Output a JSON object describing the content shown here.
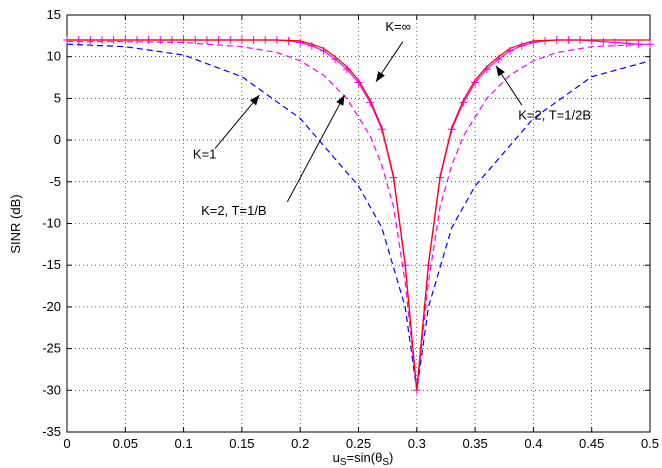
{
  "chart_data": {
    "type": "line",
    "title": "",
    "xlabel_main": "u",
    "xlabel_sub": "S",
    "xlabel_mid": "=sin(θ",
    "xlabel_sub2": "S",
    "xlabel_end": ")",
    "ylabel": "SINR (dB)",
    "xlim": [
      0,
      0.5
    ],
    "ylim": [
      -35,
      15
    ],
    "grid": true,
    "xticks": [
      "0",
      "0.05",
      "0.1",
      "0.15",
      "0.2",
      "0.25",
      "0.3",
      "0.35",
      "0.4",
      "0.45",
      "0.5"
    ],
    "yticks": [
      "15",
      "10",
      "5",
      "0",
      "-5",
      "-10",
      "-15",
      "-20",
      "-25",
      "-30",
      "-35"
    ],
    "series": [
      {
        "label": "K=1",
        "color": "#0000ff",
        "style": "dashed",
        "x": [
          0,
          0.05,
          0.1,
          0.15,
          0.2,
          0.25,
          0.27,
          0.29,
          0.3,
          0.31,
          0.33,
          0.35,
          0.4,
          0.45,
          0.5
        ],
        "y": [
          11.5,
          11.2,
          10.2,
          7.6,
          2.6,
          -5.5,
          -10.5,
          -20,
          -30,
          -20,
          -10.5,
          -5.5,
          2.6,
          7.6,
          9.5
        ]
      },
      {
        "label": "K=2, T=1/B",
        "color": "#ff00ff",
        "style": "dashed",
        "x": [
          0,
          0.05,
          0.1,
          0.15,
          0.18,
          0.2,
          0.22,
          0.24,
          0.26,
          0.27,
          0.28,
          0.29,
          0.3,
          0.31,
          0.32,
          0.33,
          0.34,
          0.36,
          0.38,
          0.4,
          0.42,
          0.45,
          0.5
        ],
        "y": [
          11.8,
          11.8,
          11.7,
          11.2,
          10.5,
          9.5,
          7.8,
          5,
          0.5,
          -3,
          -8,
          -17,
          -30,
          -17,
          -8,
          -3,
          0.5,
          5,
          7.8,
          9.5,
          10.5,
          11.2,
          11.5
        ]
      },
      {
        "label": "K=2, T=1/2B",
        "color": "#ff00ff",
        "style": "solid",
        "markers": "plus",
        "x": [
          0,
          0.01,
          0.02,
          0.03,
          0.04,
          0.05,
          0.06,
          0.07,
          0.08,
          0.09,
          0.1,
          0.11,
          0.12,
          0.13,
          0.14,
          0.15,
          0.16,
          0.17,
          0.18,
          0.19,
          0.2,
          0.21,
          0.22,
          0.23,
          0.24,
          0.25,
          0.26,
          0.27,
          0.28,
          0.29,
          0.3,
          0.31,
          0.32,
          0.33,
          0.34,
          0.35,
          0.36,
          0.37,
          0.38,
          0.39,
          0.4,
          0.41,
          0.42,
          0.43,
          0.44,
          0.45,
          0.46,
          0.47,
          0.48,
          0.49,
          0.5
        ],
        "y": [
          12,
          12,
          12,
          12,
          12,
          12,
          12,
          12,
          12,
          12,
          12,
          12,
          12,
          12,
          12,
          12,
          12,
          12,
          12,
          11.9,
          11.7,
          11.3,
          10.7,
          9.7,
          8.5,
          6.9,
          4.5,
          1.3,
          -4.5,
          -15,
          -30,
          -15,
          -4.5,
          1.3,
          4.5,
          6.9,
          8.5,
          9.7,
          10.7,
          11.3,
          11.7,
          11.9,
          12,
          12,
          12,
          11.9,
          11.8,
          11.7,
          11.6,
          11.5,
          11.5
        ]
      },
      {
        "label": "K=∞",
        "color": "#ff0000",
        "style": "solid",
        "x": [
          0,
          0.05,
          0.1,
          0.15,
          0.18,
          0.2,
          0.21,
          0.22,
          0.23,
          0.24,
          0.25,
          0.26,
          0.27,
          0.28,
          0.29,
          0.3,
          0.31,
          0.32,
          0.33,
          0.34,
          0.35,
          0.36,
          0.37,
          0.38,
          0.39,
          0.4,
          0.42,
          0.45,
          0.5
        ],
        "y": [
          12,
          12,
          12,
          12,
          12,
          11.9,
          11.5,
          11,
          10,
          8.8,
          7.2,
          4.8,
          1.5,
          -4.3,
          -14.8,
          -30,
          -14.8,
          -4.3,
          1.5,
          4.8,
          7.2,
          8.8,
          10,
          11,
          11.5,
          11.9,
          12,
          12,
          12
        ]
      }
    ],
    "annotations": [
      {
        "text": "K=∞",
        "text_x": 0.273,
        "text_y": 13.1,
        "arrow_from": [
          0.288,
          11.8
        ],
        "arrow_to": [
          0.265,
          7.0
        ]
      },
      {
        "text": "K=2, T=1/2B",
        "text_x": 0.387,
        "text_y": 2.5,
        "arrow_from": [
          0.39,
          4.2
        ],
        "arrow_to": [
          0.368,
          8.9
        ]
      },
      {
        "text": "K=1",
        "text_x": 0.108,
        "text_y": -2.2,
        "arrow_from": [
          0.127,
          -1.0
        ],
        "arrow_to": [
          0.165,
          5.4
        ]
      },
      {
        "text": "K=2, T=1/B",
        "text_x": 0.115,
        "text_y": -9.0,
        "arrow_from": [
          0.189,
          -7.4
        ],
        "arrow_to": [
          0.238,
          5.4
        ]
      }
    ]
  }
}
